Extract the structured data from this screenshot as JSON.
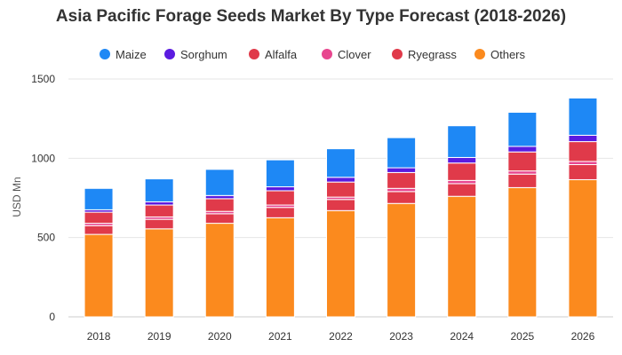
{
  "chart_data": {
    "type": "bar",
    "stacked": true,
    "title": "Asia Pacific Forage Seeds Market By Type Forecast (2018-2026)",
    "xlabel": "",
    "ylabel": "USD Mn",
    "ylim": [
      0,
      1500
    ],
    "yticks": [
      0,
      500,
      1000,
      1500
    ],
    "grid": true,
    "legend_position": "top",
    "categories": [
      "2018",
      "2019",
      "2020",
      "2021",
      "2022",
      "2023",
      "2024",
      "2025",
      "2026"
    ],
    "series": [
      {
        "name": "Others",
        "color": "#FB8A1E",
        "values": [
          520,
          555,
          590,
          625,
          670,
          715,
          760,
          815,
          865
        ]
      },
      {
        "name": "Ryegrass",
        "color": "#E03A4A",
        "values": [
          55,
          60,
          60,
          65,
          70,
          75,
          80,
          85,
          95
        ]
      },
      {
        "name": "Clover",
        "color": "#E8468F",
        "values": [
          15,
          15,
          15,
          15,
          15,
          20,
          20,
          20,
          20
        ]
      },
      {
        "name": "Alfalfa",
        "color": "#E03A4A",
        "values": [
          70,
          75,
          80,
          90,
          95,
          100,
          110,
          120,
          125
        ]
      },
      {
        "name": "Sorghum",
        "color": "#5B1BE0",
        "values": [
          15,
          20,
          20,
          25,
          30,
          30,
          35,
          35,
          40
        ]
      },
      {
        "name": "Maize",
        "color": "#1E88F5",
        "values": [
          135,
          145,
          165,
          170,
          180,
          190,
          200,
          215,
          235
        ]
      }
    ]
  },
  "legend": [
    {
      "label": "Maize",
      "color": "#1E88F5"
    },
    {
      "label": "Sorghum",
      "color": "#5B1BE0"
    },
    {
      "label": "Alfalfa",
      "color": "#E03A4A"
    },
    {
      "label": "Clover",
      "color": "#E8468F"
    },
    {
      "label": "Ryegrass",
      "color": "#E03A4A"
    },
    {
      "label": "Others",
      "color": "#FB8A1E"
    }
  ]
}
